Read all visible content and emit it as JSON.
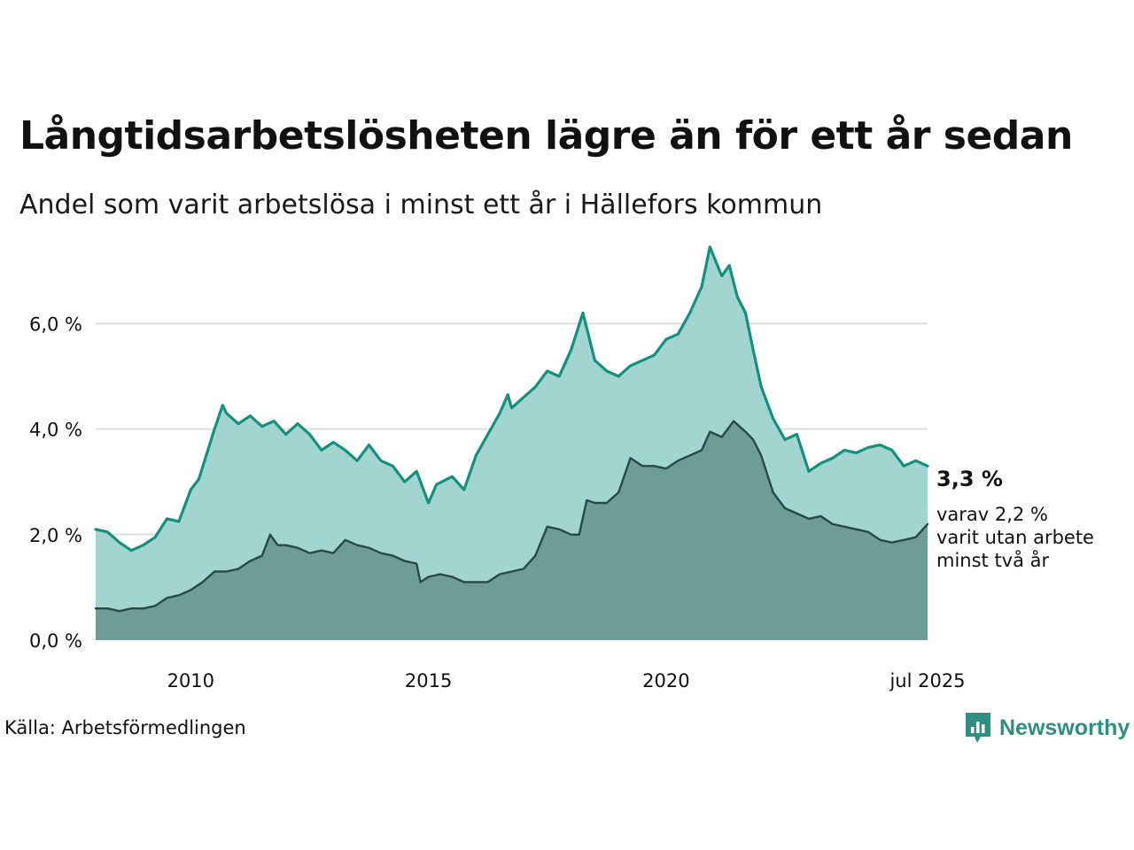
{
  "header": {
    "title": "Långtidsarbetslösheten lägre än för ett år sedan",
    "subtitle": "Andel som varit arbetslösa i minst ett år i Hällefors kommun"
  },
  "footer": {
    "source": "Källa: Arbetsförmedlingen",
    "brand": "Newsworthy",
    "brand_icon": "bar-chart-speech-bubble-icon"
  },
  "colors": {
    "series1_line": "#15907f",
    "series1_fill": "#a3d5d0",
    "series2_line": "#274a45",
    "series2_fill": "#6e9d96",
    "grid": "#dddddd",
    "brand": "#2f8f80"
  },
  "chart_data": {
    "type": "area",
    "xlim": [
      2008.0,
      2025.5
    ],
    "ylim": [
      0,
      7.6
    ],
    "y_ticks": [
      {
        "value": 0,
        "label": "0,0 %"
      },
      {
        "value": 2,
        "label": "2,0 %"
      },
      {
        "value": 4,
        "label": "4,0 %"
      },
      {
        "value": 6,
        "label": "6,0 %"
      }
    ],
    "x_ticks": [
      {
        "value": 2010,
        "label": "2010"
      },
      {
        "value": 2015,
        "label": "2015"
      },
      {
        "value": 2020,
        "label": "2020"
      },
      {
        "value": 2025.5,
        "label": "jul 2025"
      }
    ],
    "grid": true,
    "annotations": {
      "main_value": "3,3 %",
      "secondary_lines": [
        "varav 2,2 %",
        "varit utan arbete",
        "minst två år"
      ]
    },
    "series": [
      {
        "points": [
          [
            2008.0,
            2.1
          ],
          [
            2008.25,
            2.05
          ],
          [
            2008.5,
            1.85
          ],
          [
            2008.75,
            1.7
          ],
          [
            2009.0,
            1.8
          ],
          [
            2009.25,
            1.95
          ],
          [
            2009.5,
            2.3
          ],
          [
            2009.75,
            2.25
          ],
          [
            2010.0,
            2.85
          ],
          [
            2010.17,
            3.05
          ],
          [
            2010.5,
            4.0
          ],
          [
            2010.67,
            4.45
          ],
          [
            2010.75,
            4.3
          ],
          [
            2011.0,
            4.1
          ],
          [
            2011.25,
            4.25
          ],
          [
            2011.5,
            4.05
          ],
          [
            2011.75,
            4.15
          ],
          [
            2012.0,
            3.9
          ],
          [
            2012.25,
            4.1
          ],
          [
            2012.5,
            3.9
          ],
          [
            2012.75,
            3.6
          ],
          [
            2013.0,
            3.75
          ],
          [
            2013.25,
            3.6
          ],
          [
            2013.5,
            3.4
          ],
          [
            2013.75,
            3.7
          ],
          [
            2014.0,
            3.4
          ],
          [
            2014.25,
            3.3
          ],
          [
            2014.5,
            3.0
          ],
          [
            2014.75,
            3.2
          ],
          [
            2015.0,
            2.6
          ],
          [
            2015.17,
            2.95
          ],
          [
            2015.5,
            3.1
          ],
          [
            2015.75,
            2.85
          ],
          [
            2016.0,
            3.5
          ],
          [
            2016.25,
            3.9
          ],
          [
            2016.5,
            4.3
          ],
          [
            2016.67,
            4.65
          ],
          [
            2016.75,
            4.4
          ],
          [
            2017.0,
            4.6
          ],
          [
            2017.25,
            4.8
          ],
          [
            2017.5,
            5.1
          ],
          [
            2017.75,
            5.0
          ],
          [
            2018.0,
            5.5
          ],
          [
            2018.25,
            6.2
          ],
          [
            2018.5,
            5.3
          ],
          [
            2018.75,
            5.1
          ],
          [
            2019.0,
            5.0
          ],
          [
            2019.25,
            5.2
          ],
          [
            2019.5,
            5.3
          ],
          [
            2019.75,
            5.4
          ],
          [
            2020.0,
            5.7
          ],
          [
            2020.25,
            5.8
          ],
          [
            2020.5,
            6.2
          ],
          [
            2020.75,
            6.7
          ],
          [
            2020.92,
            7.45
          ],
          [
            2021.17,
            6.9
          ],
          [
            2021.33,
            7.1
          ],
          [
            2021.5,
            6.5
          ],
          [
            2021.67,
            6.2
          ],
          [
            2021.83,
            5.5
          ],
          [
            2022.0,
            4.8
          ],
          [
            2022.25,
            4.2
          ],
          [
            2022.5,
            3.8
          ],
          [
            2022.75,
            3.9
          ],
          [
            2023.0,
            3.2
          ],
          [
            2023.25,
            3.35
          ],
          [
            2023.5,
            3.45
          ],
          [
            2023.75,
            3.6
          ],
          [
            2024.0,
            3.55
          ],
          [
            2024.25,
            3.65
          ],
          [
            2024.5,
            3.7
          ],
          [
            2024.75,
            3.6
          ],
          [
            2025.0,
            3.3
          ],
          [
            2025.25,
            3.4
          ],
          [
            2025.5,
            3.3
          ]
        ]
      },
      {
        "points": [
          [
            2008.0,
            0.6
          ],
          [
            2008.25,
            0.6
          ],
          [
            2008.5,
            0.55
          ],
          [
            2008.75,
            0.6
          ],
          [
            2009.0,
            0.6
          ],
          [
            2009.25,
            0.65
          ],
          [
            2009.5,
            0.8
          ],
          [
            2009.75,
            0.85
          ],
          [
            2010.0,
            0.95
          ],
          [
            2010.25,
            1.1
          ],
          [
            2010.5,
            1.3
          ],
          [
            2010.75,
            1.3
          ],
          [
            2011.0,
            1.35
          ],
          [
            2011.25,
            1.5
          ],
          [
            2011.5,
            1.6
          ],
          [
            2011.67,
            2.0
          ],
          [
            2011.83,
            1.8
          ],
          [
            2012.0,
            1.8
          ],
          [
            2012.25,
            1.75
          ],
          [
            2012.5,
            1.65
          ],
          [
            2012.75,
            1.7
          ],
          [
            2013.0,
            1.65
          ],
          [
            2013.25,
            1.9
          ],
          [
            2013.5,
            1.8
          ],
          [
            2013.75,
            1.75
          ],
          [
            2014.0,
            1.65
          ],
          [
            2014.25,
            1.6
          ],
          [
            2014.5,
            1.5
          ],
          [
            2014.75,
            1.45
          ],
          [
            2014.83,
            1.1
          ],
          [
            2015.0,
            1.2
          ],
          [
            2015.25,
            1.25
          ],
          [
            2015.5,
            1.2
          ],
          [
            2015.75,
            1.1
          ],
          [
            2016.0,
            1.1
          ],
          [
            2016.25,
            1.1
          ],
          [
            2016.5,
            1.25
          ],
          [
            2016.75,
            1.3
          ],
          [
            2017.0,
            1.35
          ],
          [
            2017.25,
            1.6
          ],
          [
            2017.5,
            2.15
          ],
          [
            2017.75,
            2.1
          ],
          [
            2018.0,
            2.0
          ],
          [
            2018.17,
            2.0
          ],
          [
            2018.33,
            2.65
          ],
          [
            2018.5,
            2.6
          ],
          [
            2018.75,
            2.6
          ],
          [
            2019.0,
            2.8
          ],
          [
            2019.25,
            3.45
          ],
          [
            2019.5,
            3.3
          ],
          [
            2019.75,
            3.3
          ],
          [
            2020.0,
            3.25
          ],
          [
            2020.25,
            3.4
          ],
          [
            2020.5,
            3.5
          ],
          [
            2020.75,
            3.6
          ],
          [
            2020.92,
            3.95
          ],
          [
            2021.17,
            3.85
          ],
          [
            2021.42,
            4.15
          ],
          [
            2021.67,
            3.95
          ],
          [
            2021.83,
            3.8
          ],
          [
            2022.0,
            3.5
          ],
          [
            2022.25,
            2.8
          ],
          [
            2022.5,
            2.5
          ],
          [
            2022.75,
            2.4
          ],
          [
            2023.0,
            2.3
          ],
          [
            2023.25,
            2.35
          ],
          [
            2023.5,
            2.2
          ],
          [
            2023.75,
            2.15
          ],
          [
            2024.0,
            2.1
          ],
          [
            2024.25,
            2.05
          ],
          [
            2024.5,
            1.9
          ],
          [
            2024.75,
            1.85
          ],
          [
            2025.0,
            1.9
          ],
          [
            2025.25,
            1.95
          ],
          [
            2025.5,
            2.2
          ]
        ]
      }
    ]
  }
}
